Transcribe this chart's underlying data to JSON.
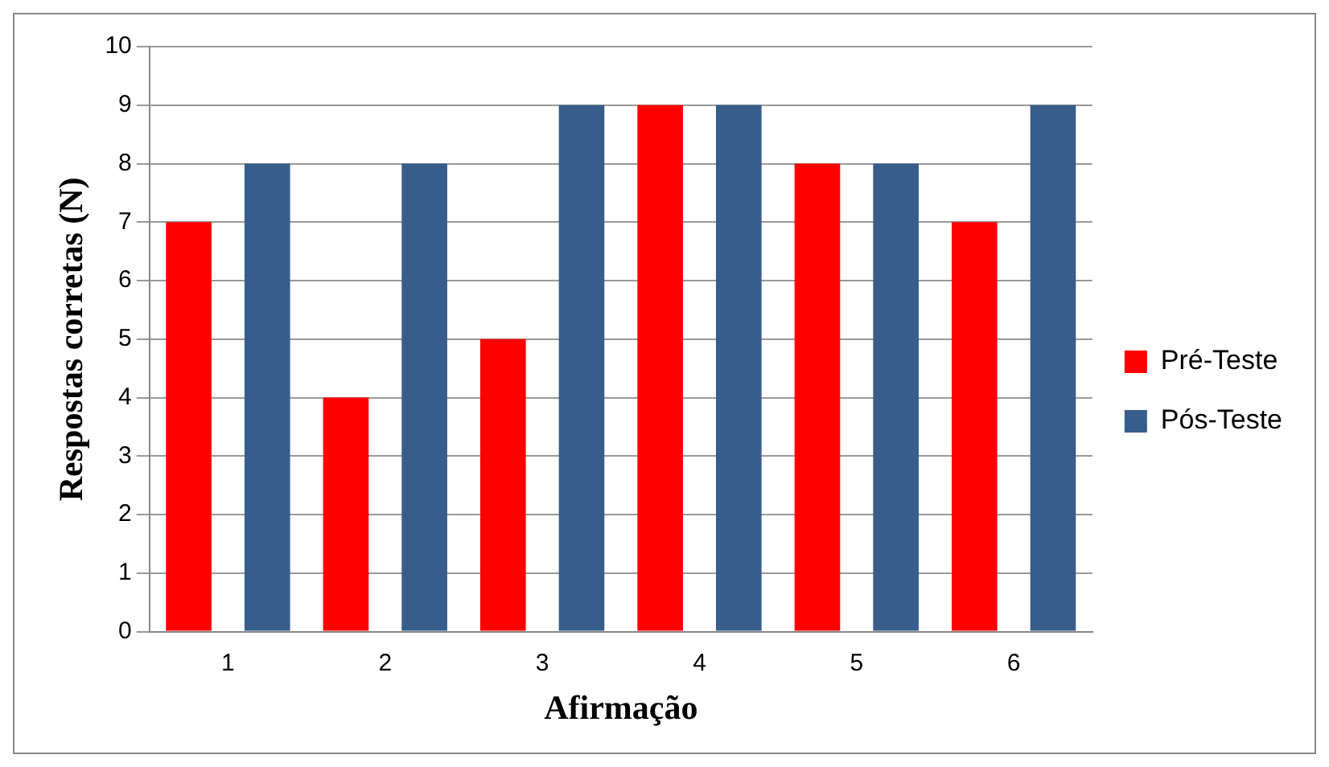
{
  "chart_data": {
    "type": "bar",
    "xlabel": "Afirmação",
    "ylabel": "Respostas corretas (N)",
    "categories": [
      "1",
      "2",
      "3",
      "4",
      "5",
      "6"
    ],
    "series": [
      {
        "name": "Pré-Teste",
        "color": "#ff0000",
        "values": [
          7,
          4,
          5,
          9,
          8,
          7
        ]
      },
      {
        "name": "Pós-Teste",
        "color": "#385d8a",
        "values": [
          8,
          8,
          9,
          9,
          8,
          9
        ]
      }
    ],
    "ylim": [
      0,
      10
    ],
    "yticks": [
      0,
      1,
      2,
      3,
      4,
      5,
      6,
      7,
      8,
      9,
      10
    ],
    "grid": "y",
    "legend": "right"
  }
}
